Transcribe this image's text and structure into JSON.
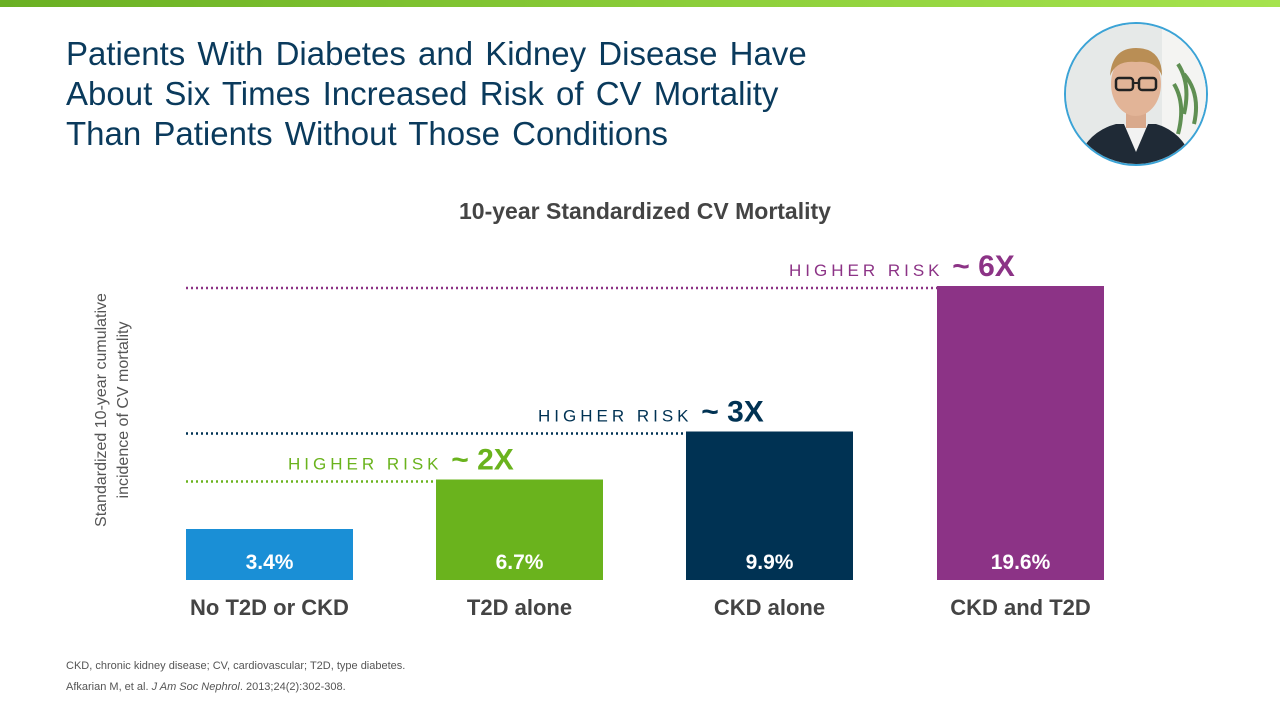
{
  "slide": {
    "title_lines": [
      "Patients With Diabetes and Kidney Disease Have",
      "About Six Times Increased Risk of CV Mortality",
      "Than Patients Without Those Conditions"
    ]
  },
  "colors": {
    "title": "#0a3a5c",
    "bar_blue": "#1a8fd6",
    "bar_green": "#6ab31d",
    "bar_navy": "#003253",
    "bar_purple": "#8c3386"
  },
  "chart_data": {
    "type": "bar",
    "title": "10-year Standardized CV Mortality",
    "ylabel_lines": [
      "Standardized 10-year cumulative",
      "incidence of CV mortality"
    ],
    "categories": [
      "No T2D or CKD",
      "T2D alone",
      "CKD alone",
      "CKD and T2D"
    ],
    "values": [
      3.4,
      6.7,
      9.9,
      19.6
    ],
    "value_labels": [
      "3.4%",
      "6.7%",
      "9.9%",
      "19.6%"
    ],
    "bar_colors": [
      "#1a8fd6",
      "#6ab31d",
      "#003253",
      "#8c3386"
    ],
    "ylim": [
      0,
      20
    ],
    "annotations": [
      {
        "bar_index": 1,
        "text": "HIGHER RISK",
        "multiplier": "~ 2X",
        "color": "#6ab31d"
      },
      {
        "bar_index": 2,
        "text": "HIGHER RISK",
        "multiplier": "~ 3X",
        "color": "#003253"
      },
      {
        "bar_index": 3,
        "text": "HIGHER RISK",
        "multiplier": "~ 6X",
        "color": "#8c3386"
      }
    ]
  },
  "footnotes": {
    "abbreviations": "CKD, chronic kidney disease; CV, cardiovascular; T2D, type diabetes.",
    "reference_authors": "Afkarian M,  et al. ",
    "reference_journal": "J Am Soc Nephrol",
    "reference_rest": ". 2013;24(2):302-308."
  }
}
